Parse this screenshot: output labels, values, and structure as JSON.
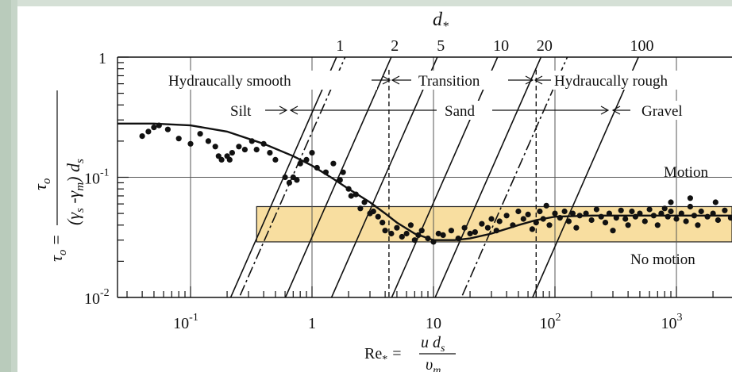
{
  "chart_data": {
    "type": "scatter",
    "title": "",
    "top_axis_symbol": "d",
    "top_axis_subscript": "*",
    "x_axis": {
      "scale": "log",
      "range": [
        0.025,
        4000
      ],
      "ticks": [
        {
          "value": 0.1,
          "base": "10",
          "exp": "-1"
        },
        {
          "value": 1,
          "base": "1",
          "exp": ""
        },
        {
          "value": 10,
          "base": "10",
          "exp": ""
        },
        {
          "value": 100,
          "base": "10",
          "exp": "2"
        },
        {
          "value": 1000,
          "base": "10",
          "exp": "3"
        }
      ],
      "label": {
        "lhs": "Re",
        "lhs_sub": "*",
        "eq": "=",
        "num": "u d",
        "num_sub": "s",
        "den": "υ",
        "den_sub": "m"
      }
    },
    "y_axis": {
      "scale": "log",
      "range": [
        0.01,
        1
      ],
      "ticks": [
        {
          "value": 1,
          "base": "1",
          "exp": ""
        },
        {
          "value": 0.1,
          "base": "10",
          "exp": "-1"
        },
        {
          "value": 0.01,
          "base": "10",
          "exp": "-2"
        }
      ],
      "label": {
        "lhs": "τ",
        "lhs_sub": "o",
        "eq": "=",
        "num": "τ",
        "num_sub": "o",
        "den": "(γ",
        "den_s": "s",
        "den_mid": " -γ",
        "den_m": "m",
        "den_end": ") d",
        "den_ds": "s"
      }
    },
    "top_axis_lines": [
      {
        "label": "1",
        "x_at_top": 1.7
      },
      {
        "label": "2",
        "x_at_top": 4.8
      },
      {
        "label": "5",
        "x_at_top": 11.5
      },
      {
        "label": "10",
        "x_at_top": 36
      },
      {
        "label": "20",
        "x_at_top": 82
      },
      {
        "label": "100",
        "x_at_top": 520
      }
    ],
    "dashdot_lines": [
      {
        "x_at_top": 2.0,
        "note": "silt/sand boundary"
      },
      {
        "x_at_top": 135,
        "note": "sand/gravel boundary"
      }
    ],
    "regime_boundaries_dashed": [
      4.3,
      70
    ],
    "regimes": [
      "Hydraucally smooth",
      "Transition",
      "Hydraucally rough"
    ],
    "sediments": [
      "Silt",
      "Sand",
      "Gravel"
    ],
    "zone_labels": {
      "upper": "Motion",
      "lower": "No motion"
    },
    "band": {
      "y_low": 0.029,
      "y_high": 0.057,
      "x_start": 0.35,
      "color": "#f8dea0"
    },
    "shields_curve": {
      "x": [
        0.025,
        0.05,
        0.1,
        0.2,
        0.4,
        0.7,
        1.0,
        1.5,
        2,
        3,
        4,
        5,
        7,
        10,
        15,
        20,
        30,
        50,
        70,
        100,
        200,
        500,
        1000,
        4000
      ],
      "y": [
        0.28,
        0.28,
        0.27,
        0.24,
        0.19,
        0.15,
        0.125,
        0.097,
        0.08,
        0.062,
        0.05,
        0.042,
        0.034,
        0.03,
        0.03,
        0.031,
        0.034,
        0.04,
        0.044,
        0.047,
        0.048,
        0.048,
        0.048,
        0.048
      ]
    },
    "points": [
      [
        0.04,
        0.22
      ],
      [
        0.045,
        0.24
      ],
      [
        0.05,
        0.26
      ],
      [
        0.055,
        0.27
      ],
      [
        0.065,
        0.25
      ],
      [
        0.08,
        0.21
      ],
      [
        0.1,
        0.19
      ],
      [
        0.12,
        0.23
      ],
      [
        0.14,
        0.2
      ],
      [
        0.16,
        0.18
      ],
      [
        0.17,
        0.15
      ],
      [
        0.18,
        0.14
      ],
      [
        0.2,
        0.15
      ],
      [
        0.21,
        0.14
      ],
      [
        0.22,
        0.16
      ],
      [
        0.25,
        0.18
      ],
      [
        0.28,
        0.17
      ],
      [
        0.32,
        0.2
      ],
      [
        0.35,
        0.17
      ],
      [
        0.4,
        0.19
      ],
      [
        0.45,
        0.16
      ],
      [
        0.5,
        0.14
      ],
      [
        0.6,
        0.1
      ],
      [
        0.65,
        0.09
      ],
      [
        0.7,
        0.1
      ],
      [
        0.75,
        0.095
      ],
      [
        0.8,
        0.13
      ],
      [
        0.9,
        0.14
      ],
      [
        1.0,
        0.16
      ],
      [
        1.1,
        0.12
      ],
      [
        1.3,
        0.11
      ],
      [
        1.5,
        0.13
      ],
      [
        1.7,
        0.095
      ],
      [
        1.8,
        0.11
      ],
      [
        2.0,
        0.08
      ],
      [
        2.1,
        0.07
      ],
      [
        2.3,
        0.072
      ],
      [
        2.5,
        0.055
      ],
      [
        2.7,
        0.062
      ],
      [
        3.0,
        0.05
      ],
      [
        3.2,
        0.052
      ],
      [
        3.5,
        0.047
      ],
      [
        3.8,
        0.042
      ],
      [
        4.0,
        0.036
      ],
      [
        4.5,
        0.034
      ],
      [
        5.0,
        0.038
      ],
      [
        5.5,
        0.032
      ],
      [
        6.0,
        0.034
      ],
      [
        6.5,
        0.04
      ],
      [
        7,
        0.03
      ],
      [
        7.5,
        0.033
      ],
      [
        8,
        0.036
      ],
      [
        9,
        0.031
      ],
      [
        10,
        0.029
      ],
      [
        11,
        0.034
      ],
      [
        12,
        0.033
      ],
      [
        14,
        0.036
      ],
      [
        16,
        0.031
      ],
      [
        18,
        0.038
      ],
      [
        20,
        0.034
      ],
      [
        22,
        0.035
      ],
      [
        25,
        0.041
      ],
      [
        28,
        0.038
      ],
      [
        30,
        0.045
      ],
      [
        33,
        0.036
      ],
      [
        35,
        0.043
      ],
      [
        40,
        0.048
      ],
      [
        45,
        0.04
      ],
      [
        50,
        0.052
      ],
      [
        55,
        0.045
      ],
      [
        60,
        0.049
      ],
      [
        65,
        0.037
      ],
      [
        70,
        0.042
      ],
      [
        75,
        0.052
      ],
      [
        80,
        0.045
      ],
      [
        85,
        0.058
      ],
      [
        90,
        0.04
      ],
      [
        100,
        0.05
      ],
      [
        110,
        0.046
      ],
      [
        120,
        0.052
      ],
      [
        130,
        0.043
      ],
      [
        140,
        0.05
      ],
      [
        150,
        0.038
      ],
      [
        160,
        0.048
      ],
      [
        180,
        0.05
      ],
      [
        200,
        0.044
      ],
      [
        220,
        0.054
      ],
      [
        240,
        0.047
      ],
      [
        260,
        0.042
      ],
      [
        280,
        0.05
      ],
      [
        300,
        0.036
      ],
      [
        320,
        0.046
      ],
      [
        350,
        0.053
      ],
      [
        380,
        0.045
      ],
      [
        400,
        0.04
      ],
      [
        430,
        0.052
      ],
      [
        460,
        0.047
      ],
      [
        500,
        0.05
      ],
      [
        550,
        0.043
      ],
      [
        600,
        0.054
      ],
      [
        650,
        0.048
      ],
      [
        700,
        0.04
      ],
      [
        750,
        0.05
      ],
      [
        800,
        0.055
      ],
      [
        850,
        0.047
      ],
      [
        900,
        0.052
      ],
      [
        1000,
        0.045
      ],
      [
        1100,
        0.05
      ],
      [
        1200,
        0.043
      ],
      [
        1300,
        0.057
      ],
      [
        1400,
        0.048
      ],
      [
        1500,
        0.04
      ],
      [
        1600,
        0.052
      ],
      [
        1800,
        0.047
      ],
      [
        2000,
        0.05
      ],
      [
        2200,
        0.044
      ],
      [
        2500,
        0.053
      ],
      [
        2800,
        0.046
      ],
      [
        3000,
        0.051
      ],
      [
        3300,
        0.036
      ],
      [
        3600,
        0.044
      ],
      [
        3900,
        0.05
      ],
      [
        900,
        0.062
      ],
      [
        1300,
        0.067
      ],
      [
        2100,
        0.062
      ]
    ]
  }
}
